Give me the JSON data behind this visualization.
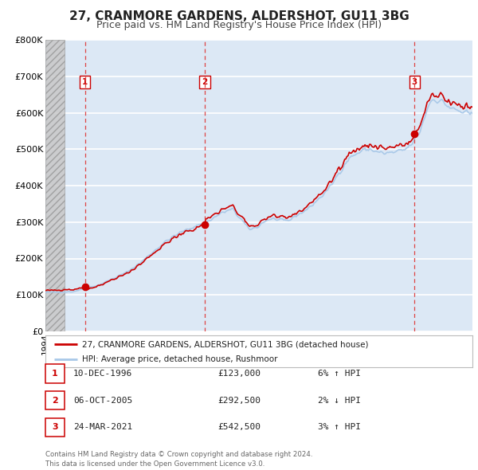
{
  "title": "27, CRANMORE GARDENS, ALDERSHOT, GU11 3BG",
  "subtitle": "Price paid vs. HM Land Registry's House Price Index (HPI)",
  "ylim": [
    0,
    800000
  ],
  "yticks": [
    0,
    100000,
    200000,
    300000,
    400000,
    500000,
    600000,
    700000,
    800000
  ],
  "ytick_labels": [
    "£0",
    "£100K",
    "£200K",
    "£300K",
    "£400K",
    "£500K",
    "£600K",
    "£700K",
    "£800K"
  ],
  "hpi_color": "#a8c8e8",
  "price_color": "#cc0000",
  "marker_color": "#cc0000",
  "vline_color": "#dd4444",
  "background_color": "#ffffff",
  "plot_bg_color": "#dce8f5",
  "grid_color": "#ffffff",
  "legend_label_price": "27, CRANMORE GARDENS, ALDERSHOT, GU11 3BG (detached house)",
  "legend_label_hpi": "HPI: Average price, detached house, Rushmoor",
  "sale_points": [
    {
      "date_num": 1996.92,
      "price": 123000,
      "label": "1"
    },
    {
      "date_num": 2005.76,
      "price": 292500,
      "label": "2"
    },
    {
      "date_num": 2021.23,
      "price": 542500,
      "label": "3"
    }
  ],
  "table_rows": [
    {
      "num": "1",
      "date": "10-DEC-1996",
      "price": "£123,000",
      "hpi": "6% ↑ HPI"
    },
    {
      "num": "2",
      "date": "06-OCT-2005",
      "price": "£292,500",
      "hpi": "2% ↓ HPI"
    },
    {
      "num": "3",
      "date": "24-MAR-2021",
      "price": "£542,500",
      "hpi": "3% ↑ HPI"
    }
  ],
  "footer": "Contains HM Land Registry data © Crown copyright and database right 2024.\nThis data is licensed under the Open Government Licence v3.0.",
  "xmin": 1994.0,
  "xmax": 2025.5,
  "hatch_end": 1995.4,
  "title_fontsize": 11,
  "subtitle_fontsize": 9,
  "tick_fontsize": 8
}
